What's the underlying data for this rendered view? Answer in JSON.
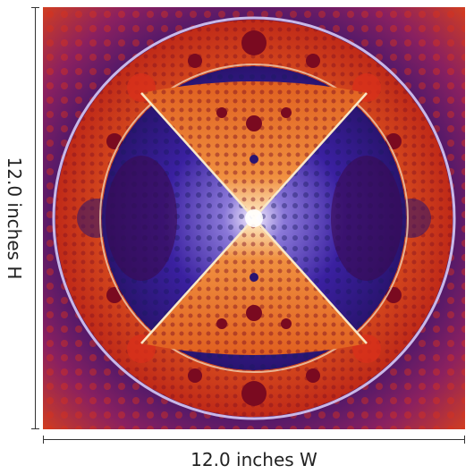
{
  "dimensions": {
    "height_label": "12.0 inches H",
    "width_label": "12.0 inches W"
  },
  "artwork": {
    "colors": {
      "deep_purple": "#2a1470",
      "violet": "#4a2aa0",
      "red": "#d8301a",
      "orange": "#f07a20",
      "maroon": "#7a0a20",
      "pale": "#f4e6d0",
      "navy": "#1a1a60"
    }
  }
}
